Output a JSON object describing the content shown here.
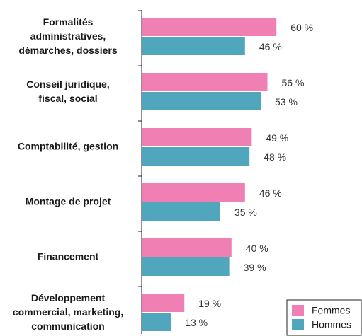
{
  "chart_data": {
    "type": "bar",
    "orientation": "horizontal",
    "categories": [
      "Formalités\nadministratives,\ndémarches, dossiers",
      "Conseil juridique,\nfiscal, social",
      "Comptabilité, gestion",
      "Montage de projet",
      "Financement",
      "Développement\ncommercial, marketing,\ncommunication"
    ],
    "series": [
      {
        "name": "Femmes",
        "color": "#f07fb3",
        "values": [
          60,
          56,
          49,
          46,
          40,
          19
        ],
        "value_labels": [
          "60 %",
          "56 %",
          "49 %",
          "46 %",
          "40 %",
          "19 %"
        ]
      },
      {
        "name": "Hommes",
        "color": "#4fa6bd",
        "values": [
          46,
          53,
          48,
          35,
          39,
          13
        ],
        "value_labels": [
          "46 %",
          "53 %",
          "48 %",
          "35 %",
          "39 %",
          "13 %"
        ]
      }
    ],
    "xlim": [
      0,
      100
    ],
    "legend": "lower right"
  }
}
